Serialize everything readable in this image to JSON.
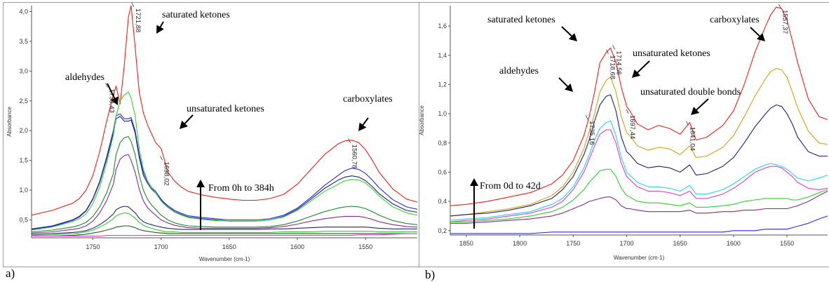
{
  "panels": [
    {
      "letter": "a)"
    },
    {
      "letter": "b)"
    }
  ],
  "chart_data": [
    {
      "type": "line",
      "xlabel": "Wavenumber (cm-1)",
      "ylabel": "Absorbance",
      "xlim": [
        1795,
        1512
      ],
      "ylim": [
        0.2,
        4.1
      ],
      "x_ticks": [
        1750,
        1700,
        1650,
        1600,
        1550
      ],
      "y_ticks": [
        0.5,
        1.0,
        1.5,
        2.0,
        2.5,
        3.0,
        3.5,
        4.0
      ],
      "x_tick_labels": [
        "1750",
        "1700",
        "1650",
        "1600",
        "1550"
      ],
      "y_tick_labels": [
        "0,5",
        "1,0",
        "1,5",
        "2,0",
        "2,5",
        "3,0",
        "3,5",
        "4,0"
      ],
      "x": [
        1795,
        1780,
        1765,
        1760,
        1755,
        1750,
        1745,
        1740,
        1735,
        1733,
        1730,
        1727,
        1724,
        1722,
        1719,
        1716,
        1713,
        1710,
        1707,
        1704,
        1700,
        1698,
        1695,
        1690,
        1685,
        1680,
        1670,
        1660,
        1650,
        1640,
        1630,
        1620,
        1610,
        1600,
        1590,
        1580,
        1570,
        1565,
        1560,
        1555,
        1550,
        1545,
        1540,
        1530,
        1520,
        1512
      ],
      "series": [
        {
          "color": "#e8231e",
          "values": [
            0.58,
            0.66,
            0.78,
            0.86,
            1.0,
            1.25,
            1.65,
            2.15,
            2.6,
            2.75,
            2.45,
            3.1,
            3.9,
            4.1,
            3.4,
            2.65,
            2.3,
            2.1,
            1.95,
            1.8,
            1.7,
            1.55,
            1.3,
            1.15,
            1.05,
            0.98,
            0.92,
            0.88,
            0.85,
            0.83,
            0.83,
            0.86,
            0.93,
            1.1,
            1.35,
            1.6,
            1.78,
            1.83,
            1.84,
            1.8,
            1.68,
            1.5,
            1.3,
            1.02,
            0.85,
            0.8
          ]
        },
        {
          "color": "#2a2fe0",
          "values": [
            0.35,
            0.4,
            0.5,
            0.56,
            0.66,
            0.86,
            1.15,
            1.55,
            2.0,
            2.25,
            2.28,
            2.2,
            2.2,
            2.22,
            2.0,
            1.6,
            1.3,
            1.15,
            1.05,
            0.98,
            0.85,
            0.8,
            0.74,
            0.66,
            0.61,
            0.57,
            0.54,
            0.52,
            0.5,
            0.5,
            0.5,
            0.52,
            0.58,
            0.7,
            0.88,
            1.08,
            1.25,
            1.33,
            1.37,
            1.35,
            1.28,
            1.17,
            1.04,
            0.84,
            0.72,
            0.68
          ]
        },
        {
          "color": "#1f1f7a",
          "values": [
            0.34,
            0.39,
            0.49,
            0.55,
            0.65,
            0.85,
            1.13,
            1.52,
            1.96,
            2.2,
            2.24,
            2.16,
            2.16,
            2.18,
            1.96,
            1.55,
            1.25,
            1.12,
            1.02,
            0.95,
            0.83,
            0.78,
            0.72,
            0.64,
            0.59,
            0.55,
            0.52,
            0.5,
            0.48,
            0.48,
            0.48,
            0.5,
            0.56,
            0.68,
            0.85,
            1.03,
            1.17,
            1.22,
            1.24,
            1.22,
            1.16,
            1.06,
            0.94,
            0.77,
            0.66,
            0.63
          ]
        },
        {
          "color": "#3bd13b",
          "values": [
            0.33,
            0.38,
            0.47,
            0.52,
            0.6,
            0.78,
            1.05,
            1.45,
            1.92,
            2.25,
            2.5,
            2.6,
            2.65,
            2.55,
            2.25,
            1.7,
            1.35,
            1.16,
            1.05,
            0.95,
            0.82,
            0.77,
            0.71,
            0.63,
            0.58,
            0.54,
            0.51,
            0.49,
            0.48,
            0.48,
            0.48,
            0.5,
            0.55,
            0.66,
            0.82,
            0.98,
            1.1,
            1.16,
            1.18,
            1.17,
            1.12,
            1.02,
            0.9,
            0.72,
            0.62,
            0.58
          ]
        },
        {
          "color": "#1e8a2e",
          "values": [
            0.3,
            0.33,
            0.38,
            0.41,
            0.46,
            0.56,
            0.72,
            0.95,
            1.28,
            1.6,
            1.8,
            1.88,
            1.9,
            1.82,
            1.6,
            1.25,
            1.0,
            0.85,
            0.75,
            0.68,
            0.58,
            0.55,
            0.5,
            0.45,
            0.42,
            0.4,
            0.39,
            0.38,
            0.38,
            0.38,
            0.38,
            0.39,
            0.42,
            0.48,
            0.56,
            0.64,
            0.7,
            0.72,
            0.73,
            0.72,
            0.69,
            0.64,
            0.58,
            0.49,
            0.44,
            0.42
          ]
        },
        {
          "color": "#8a2c8a",
          "values": [
            0.28,
            0.3,
            0.34,
            0.36,
            0.4,
            0.48,
            0.62,
            0.82,
            1.1,
            1.35,
            1.52,
            1.58,
            1.6,
            1.5,
            1.3,
            1.02,
            0.82,
            0.71,
            0.64,
            0.58,
            0.5,
            0.48,
            0.45,
            0.41,
            0.39,
            0.37,
            0.36,
            0.36,
            0.36,
            0.36,
            0.36,
            0.37,
            0.39,
            0.43,
            0.48,
            0.52,
            0.55,
            0.56,
            0.56,
            0.56,
            0.54,
            0.51,
            0.47,
            0.42,
            0.39,
            0.38
          ]
        },
        {
          "color": "#26267a",
          "values": [
            0.26,
            0.27,
            0.29,
            0.3,
            0.32,
            0.36,
            0.42,
            0.5,
            0.6,
            0.67,
            0.71,
            0.73,
            0.72,
            0.68,
            0.62,
            0.53,
            0.47,
            0.44,
            0.42,
            0.4,
            0.38,
            0.37,
            0.36,
            0.35,
            0.34,
            0.34,
            0.34,
            0.34,
            0.34,
            0.34,
            0.34,
            0.35,
            0.35,
            0.36,
            0.37,
            0.38,
            0.38,
            0.38,
            0.38,
            0.38,
            0.38,
            0.37,
            0.36,
            0.35,
            0.35,
            0.35
          ]
        },
        {
          "color": "#33cc33",
          "values": [
            0.24,
            0.25,
            0.27,
            0.28,
            0.3,
            0.33,
            0.38,
            0.44,
            0.52,
            0.57,
            0.6,
            0.62,
            0.61,
            0.58,
            0.53,
            0.46,
            0.41,
            0.38,
            0.36,
            0.34,
            0.32,
            0.31,
            0.3,
            0.3,
            0.29,
            0.29,
            0.29,
            0.29,
            0.29,
            0.29,
            0.29,
            0.29,
            0.3,
            0.3,
            0.3,
            0.31,
            0.31,
            0.31,
            0.31,
            0.31,
            0.31,
            0.31,
            0.3,
            0.3,
            0.3,
            0.3
          ]
        },
        {
          "color": "#1b5e20",
          "values": [
            0.23,
            0.23,
            0.24,
            0.25,
            0.26,
            0.28,
            0.3,
            0.33,
            0.36,
            0.38,
            0.39,
            0.4,
            0.4,
            0.39,
            0.37,
            0.34,
            0.32,
            0.31,
            0.3,
            0.29,
            0.28,
            0.28,
            0.27,
            0.27,
            0.27,
            0.27,
            0.27,
            0.27,
            0.27,
            0.27,
            0.27,
            0.27,
            0.27,
            0.27,
            0.27,
            0.27,
            0.27,
            0.27,
            0.27,
            0.27,
            0.27,
            0.27,
            0.27,
            0.27,
            0.27,
            0.27
          ]
        },
        {
          "color": "#e040e0",
          "values": [
            0.23,
            0.23,
            0.23,
            0.23,
            0.23,
            0.23,
            0.23,
            0.24,
            0.24,
            0.24,
            0.24,
            0.24,
            0.24,
            0.24,
            0.24,
            0.24,
            0.24,
            0.24,
            0.24,
            0.24,
            0.24,
            0.24,
            0.24,
            0.24,
            0.24,
            0.24,
            0.24,
            0.24,
            0.24,
            0.24,
            0.24,
            0.24,
            0.24,
            0.24,
            0.24,
            0.24,
            0.24,
            0.24,
            0.24,
            0.25,
            0.25,
            0.25,
            0.25,
            0.26,
            0.27,
            0.27
          ]
        }
      ],
      "peak_labels": [
        {
          "text": "1721,88",
          "x": 1722,
          "y": 4.1
        },
        {
          "text": "1733,43",
          "x": 1733,
          "y": 2.75
        },
        {
          "text": "1698,02",
          "x": 1698,
          "y": 1.55
        },
        {
          "text": "1560,78",
          "x": 1560,
          "y": 1.84
        }
      ],
      "annotations": [
        {
          "text": "saturated ketones"
        },
        {
          "text": "aldehydes"
        },
        {
          "text": "unsaturated ketones"
        },
        {
          "text": "carboxylates"
        },
        {
          "text": "From 0h to 384h"
        }
      ]
    },
    {
      "type": "line",
      "xlabel": "Wavenumber (cm-1)",
      "ylabel": "Absorbance",
      "xlim": [
        1865,
        1512
      ],
      "ylim": [
        0.17,
        1.74
      ],
      "x_ticks": [
        1850,
        1800,
        1750,
        1700,
        1650,
        1600,
        1550
      ],
      "y_ticks": [
        0.2,
        0.4,
        0.6,
        0.8,
        1.0,
        1.2,
        1.4,
        1.6
      ],
      "x_tick_labels": [
        "1850",
        "1800",
        "1750",
        "1700",
        "1650",
        "1600",
        "1550"
      ],
      "y_tick_labels": [
        "0,2",
        "0,4",
        "0,6",
        "0,8",
        "1,0",
        "1,2",
        "1,4",
        "1,6"
      ],
      "x": [
        1865,
        1850,
        1830,
        1810,
        1790,
        1770,
        1760,
        1750,
        1740,
        1735,
        1730,
        1725,
        1719,
        1715,
        1710,
        1705,
        1700,
        1697,
        1690,
        1680,
        1670,
        1660,
        1650,
        1641,
        1635,
        1625,
        1610,
        1600,
        1590,
        1580,
        1570,
        1565,
        1560,
        1555,
        1550,
        1545,
        1540,
        1530,
        1520,
        1512
      ],
      "series": [
        {
          "color": "#e8231e",
          "values": [
            0.37,
            0.38,
            0.4,
            0.43,
            0.46,
            0.52,
            0.58,
            0.68,
            0.85,
            0.98,
            1.15,
            1.35,
            1.42,
            1.45,
            1.35,
            1.18,
            1.05,
            1.02,
            0.93,
            0.89,
            0.92,
            0.9,
            0.86,
            0.94,
            0.82,
            0.84,
            0.92,
            1.02,
            1.2,
            1.42,
            1.6,
            1.68,
            1.73,
            1.72,
            1.64,
            1.5,
            1.35,
            1.1,
            0.98,
            0.96
          ]
        },
        {
          "color": "#d4a017",
          "values": [
            0.3,
            0.31,
            0.33,
            0.35,
            0.38,
            0.44,
            0.5,
            0.6,
            0.76,
            0.88,
            1.0,
            1.15,
            1.23,
            1.25,
            1.15,
            0.98,
            0.87,
            0.85,
            0.78,
            0.75,
            0.77,
            0.76,
            0.72,
            0.78,
            0.7,
            0.71,
            0.77,
            0.85,
            0.98,
            1.12,
            1.24,
            1.29,
            1.31,
            1.3,
            1.25,
            1.15,
            1.04,
            0.88,
            0.8,
            0.79
          ]
        },
        {
          "color": "#1f1f7a",
          "values": [
            0.3,
            0.31,
            0.32,
            0.34,
            0.37,
            0.42,
            0.48,
            0.57,
            0.72,
            0.82,
            0.95,
            1.06,
            1.12,
            1.13,
            1.02,
            0.84,
            0.74,
            0.72,
            0.66,
            0.63,
            0.64,
            0.63,
            0.6,
            0.65,
            0.58,
            0.59,
            0.64,
            0.7,
            0.8,
            0.91,
            1.0,
            1.04,
            1.06,
            1.05,
            1.0,
            0.93,
            0.84,
            0.74,
            0.71,
            0.71
          ]
        },
        {
          "color": "#2ad4e4",
          "values": [
            0.27,
            0.28,
            0.29,
            0.31,
            0.33,
            0.38,
            0.42,
            0.5,
            0.63,
            0.72,
            0.82,
            0.9,
            0.94,
            0.95,
            0.85,
            0.7,
            0.6,
            0.58,
            0.53,
            0.5,
            0.5,
            0.49,
            0.47,
            0.51,
            0.45,
            0.45,
            0.48,
            0.52,
            0.57,
            0.62,
            0.65,
            0.66,
            0.65,
            0.64,
            0.62,
            0.59,
            0.56,
            0.54,
            0.56,
            0.58
          ]
        },
        {
          "color": "#e040c8",
          "values": [
            0.26,
            0.27,
            0.28,
            0.3,
            0.32,
            0.36,
            0.4,
            0.48,
            0.6,
            0.69,
            0.78,
            0.86,
            0.89,
            0.89,
            0.8,
            0.66,
            0.57,
            0.55,
            0.5,
            0.47,
            0.47,
            0.46,
            0.44,
            0.47,
            0.42,
            0.42,
            0.45,
            0.49,
            0.54,
            0.6,
            0.63,
            0.64,
            0.64,
            0.63,
            0.6,
            0.57,
            0.53,
            0.49,
            0.48,
            0.49
          ]
        },
        {
          "color": "#33cc33",
          "values": [
            0.26,
            0.26,
            0.27,
            0.28,
            0.3,
            0.33,
            0.36,
            0.41,
            0.48,
            0.53,
            0.57,
            0.61,
            0.62,
            0.62,
            0.57,
            0.49,
            0.44,
            0.43,
            0.4,
            0.39,
            0.39,
            0.38,
            0.37,
            0.39,
            0.36,
            0.36,
            0.37,
            0.38,
            0.4,
            0.41,
            0.42,
            0.42,
            0.42,
            0.42,
            0.42,
            0.41,
            0.41,
            0.43,
            0.46,
            0.48
          ]
        },
        {
          "color": "#8a2c8a",
          "values": [
            0.25,
            0.25,
            0.26,
            0.27,
            0.28,
            0.3,
            0.32,
            0.35,
            0.38,
            0.4,
            0.41,
            0.42,
            0.43,
            0.43,
            0.41,
            0.37,
            0.35,
            0.35,
            0.34,
            0.33,
            0.33,
            0.33,
            0.33,
            0.34,
            0.32,
            0.32,
            0.33,
            0.33,
            0.34,
            0.34,
            0.35,
            0.35,
            0.35,
            0.35,
            0.35,
            0.36,
            0.37,
            0.4,
            0.44,
            0.47
          ]
        },
        {
          "color": "#2a2fe0",
          "values": [
            0.18,
            0.18,
            0.18,
            0.18,
            0.18,
            0.19,
            0.19,
            0.19,
            0.19,
            0.19,
            0.19,
            0.19,
            0.19,
            0.19,
            0.19,
            0.19,
            0.19,
            0.19,
            0.19,
            0.19,
            0.19,
            0.19,
            0.19,
            0.19,
            0.19,
            0.19,
            0.19,
            0.2,
            0.2,
            0.2,
            0.21,
            0.21,
            0.21,
            0.21,
            0.21,
            0.22,
            0.23,
            0.25,
            0.28,
            0.3
          ]
        }
      ],
      "peak_labels": [
        {
          "text": "1718,68",
          "x": 1719,
          "y": 1.42
        },
        {
          "text": "1714,56",
          "x": 1715,
          "y": 1.45
        },
        {
          "text": "1735,16",
          "x": 1735,
          "y": 0.98
        },
        {
          "text": "1697,44",
          "x": 1697,
          "y": 1.02
        },
        {
          "text": "1641,04",
          "x": 1641,
          "y": 0.94
        },
        {
          "text": "1557,37",
          "x": 1557,
          "y": 1.73
        }
      ],
      "annotations": [
        {
          "text": "saturated ketones"
        },
        {
          "text": "aldehydes"
        },
        {
          "text": "unsaturated ketones"
        },
        {
          "text": "unsaturated double bonds"
        },
        {
          "text": "carboxylates"
        },
        {
          "text": "From 0d to 42d"
        }
      ]
    }
  ]
}
